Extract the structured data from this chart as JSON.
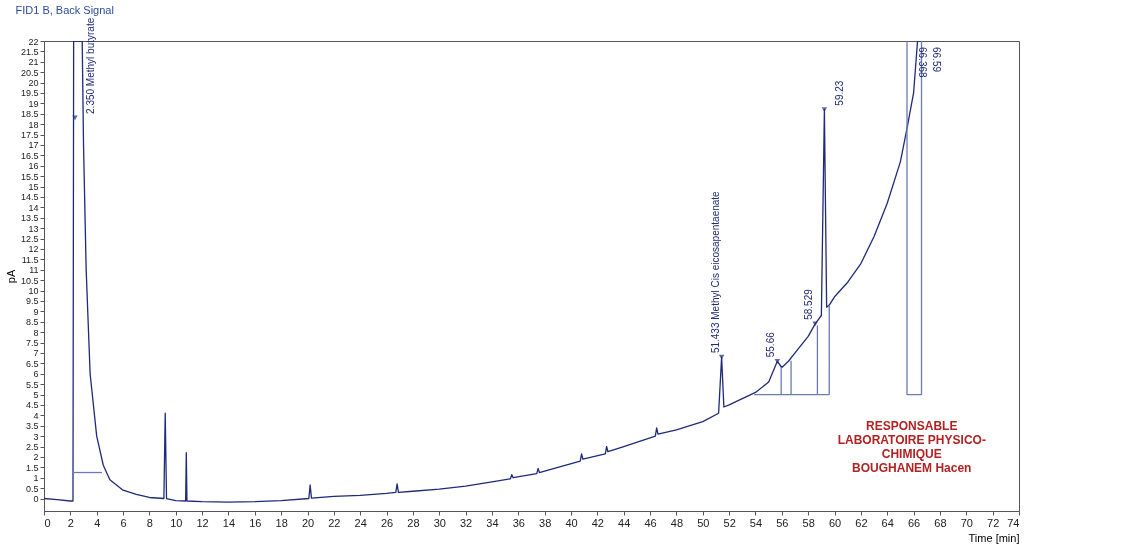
{
  "chart_data": {
    "type": "line",
    "title": "FID1 B, Back Signal",
    "xlabel": "Time [min]",
    "ylabel": "pA",
    "xlim": [
      0,
      74
    ],
    "xticks": [
      0,
      2,
      4,
      6,
      8,
      10,
      12,
      14,
      16,
      18,
      20,
      22,
      24,
      26,
      28,
      30,
      32,
      34,
      36,
      38,
      40,
      42,
      44,
      46,
      48,
      50,
      52,
      54,
      56,
      58,
      60,
      62,
      64,
      66,
      68,
      70,
      72,
      74
    ],
    "ylim": [
      -0.6,
      22
    ],
    "yticks": [
      0,
      0.5,
      1,
      1.5,
      2,
      2.5,
      3,
      3.5,
      4,
      4.5,
      5,
      5.5,
      6,
      6.5,
      7,
      7.5,
      8,
      8.5,
      9,
      9.5,
      10,
      10.5,
      11,
      11.5,
      12,
      12.5,
      13,
      13.5,
      14,
      14.5,
      15,
      15.5,
      16,
      16.5,
      17,
      17.5,
      18,
      18.5,
      19,
      19.5,
      20,
      20.5,
      21,
      21.5,
      22
    ],
    "grid": false,
    "marker": "none",
    "line_style": "solid",
    "series": [
      {
        "color": "#1f2a7a",
        "x": [
          0,
          1,
          2,
          2.2,
          2.25,
          2.45,
          2.9,
          3.0,
          3.2,
          3.5,
          4,
          4.5,
          5,
          6,
          7,
          8,
          9.1,
          9.2,
          9.3,
          10,
          10.75,
          10.8,
          10.85,
          12,
          14,
          16,
          18,
          20.1,
          20.2,
          20.3,
          22,
          24,
          26,
          26.7,
          26.8,
          26.9,
          28,
          30,
          32,
          34,
          35.4,
          35.5,
          35.6,
          37.4,
          37.5,
          37.6,
          39,
          40.7,
          40.8,
          40.9,
          42.6,
          42.7,
          42.8,
          44,
          46.4,
          46.5,
          46.6,
          48,
          50,
          51.2,
          51.43,
          51.6,
          52,
          53,
          54,
          55,
          55.66,
          56,
          56.5,
          57,
          58,
          58.53,
          59,
          59.23,
          59.4,
          59.6,
          60,
          61,
          62,
          63,
          64,
          65,
          65.5,
          66,
          66.3,
          66.6
        ],
        "values": [
          0,
          -0.05,
          -0.12,
          -0.12,
          22,
          22,
          22,
          17,
          11,
          6,
          3,
          1.6,
          0.9,
          0.4,
          0.2,
          0.05,
          0,
          4.1,
          0,
          -0.1,
          -0.12,
          2.2,
          -0.12,
          -0.15,
          -0.17,
          -0.15,
          -0.1,
          0,
          0.65,
          0.02,
          0.1,
          0.15,
          0.25,
          0.3,
          0.7,
          0.3,
          0.35,
          0.45,
          0.6,
          0.8,
          0.95,
          1.15,
          1.0,
          1.2,
          1.45,
          1.25,
          1.5,
          1.8,
          2.15,
          1.9,
          2.15,
          2.5,
          2.25,
          2.5,
          3.0,
          3.4,
          3.1,
          3.3,
          3.7,
          4.1,
          6.8,
          4.4,
          4.5,
          4.8,
          5.1,
          5.6,
          6.6,
          6.3,
          6.6,
          7.0,
          7.8,
          8.4,
          8.8,
          18.7,
          9.2,
          9.3,
          9.7,
          10.4,
          11.3,
          12.6,
          14.2,
          16.2,
          17.8,
          19.5,
          22,
          22
        ]
      },
      {
        "color": "#6c7bb0",
        "x": [
          2.2,
          4.4
        ],
        "values": [
          1.25,
          1.25
        ]
      },
      {
        "color": "#6c7bb0",
        "x": [
          53.9,
          55.95,
          55.95,
          55.95,
          56.7,
          56.7,
          56.7,
          58.7,
          58.7,
          58.7,
          59.6,
          59.6
        ],
        "values": [
          5,
          5,
          6.3,
          5,
          5,
          6.6,
          5,
          5,
          8.3,
          5,
          5,
          9.3
        ]
      },
      {
        "color": "#6c7bb0",
        "x": [
          65.5,
          65.5,
          66.6,
          66.6
        ],
        "values": [
          22,
          5,
          5,
          22
        ]
      }
    ],
    "annotations": [
      {
        "text": "2.350 Methyl butyrate",
        "x": 2.35,
        "y": 18.3
      },
      {
        "text": "51.433 Methyl Cis eicosapentaenate",
        "x": 51.433,
        "y": 6.8
      },
      {
        "text": "55.66",
        "x": 55.66,
        "y": 6.6
      },
      {
        "text": "58.529",
        "x": 58.529,
        "y": 8.4
      },
      {
        "text": "59.23",
        "x": 59.23,
        "y": 18.7
      },
      {
        "text": "66.368",
        "x": 66.368,
        "y": 22
      },
      {
        "text": "66.59",
        "x": 66.59,
        "y": 22
      },
      "RESPONSABLE",
      "LABORATOIRE PHYSICO-",
      "CHIMIQUE",
      "BOUGHANEM Hacen"
    ]
  }
}
